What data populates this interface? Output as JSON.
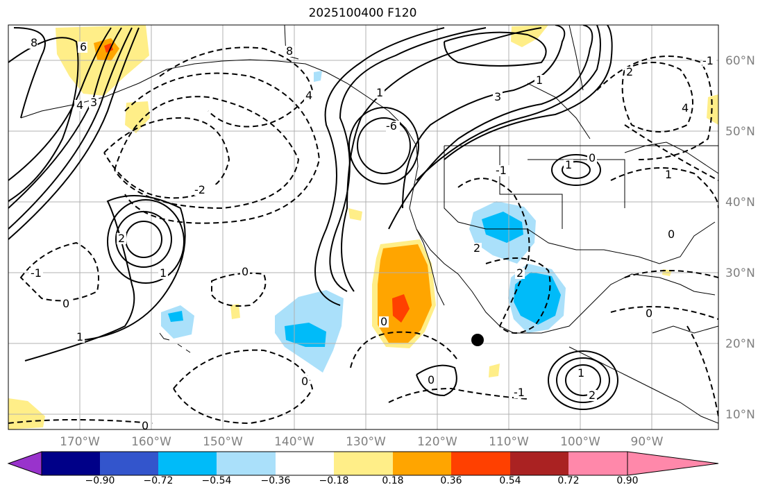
{
  "title": "2025100400 F120",
  "map": {
    "lon_labels": [
      "170°W",
      "160°W",
      "150°W",
      "140°W",
      "130°W",
      "120°W",
      "110°W",
      "100°W",
      "90°W"
    ],
    "lat_labels": [
      "60°N",
      "50°N",
      "40°N",
      "30°N",
      "20°N",
      "10°N"
    ],
    "contour_labels": [
      "8",
      "6",
      "4",
      "3",
      "2",
      "1",
      "0",
      "-1",
      "-2",
      "-6",
      "8",
      "4",
      "3",
      "-1",
      "1",
      "0",
      "2",
      "0",
      "0",
      "1",
      "2",
      "4",
      "-1",
      "0",
      "1",
      "0",
      "1",
      "2",
      "-1",
      "0",
      "0",
      "1",
      "2",
      "1",
      "0"
    ],
    "marker": "black-dot"
  },
  "colorbar": {
    "colors": [
      "#9933cc",
      "#000088",
      "#3355cc",
      "#00bbf9",
      "#aae0fa",
      "#ffffff",
      "#ffee88",
      "#ffa500",
      "#ff4000",
      "#aa2222",
      "#ff88aa"
    ],
    "tick_labels": [
      "−0.90",
      "−0.72",
      "−0.54",
      "−0.36",
      "−0.18",
      "0.18",
      "0.36",
      "0.54",
      "0.72",
      "0.90"
    ]
  }
}
